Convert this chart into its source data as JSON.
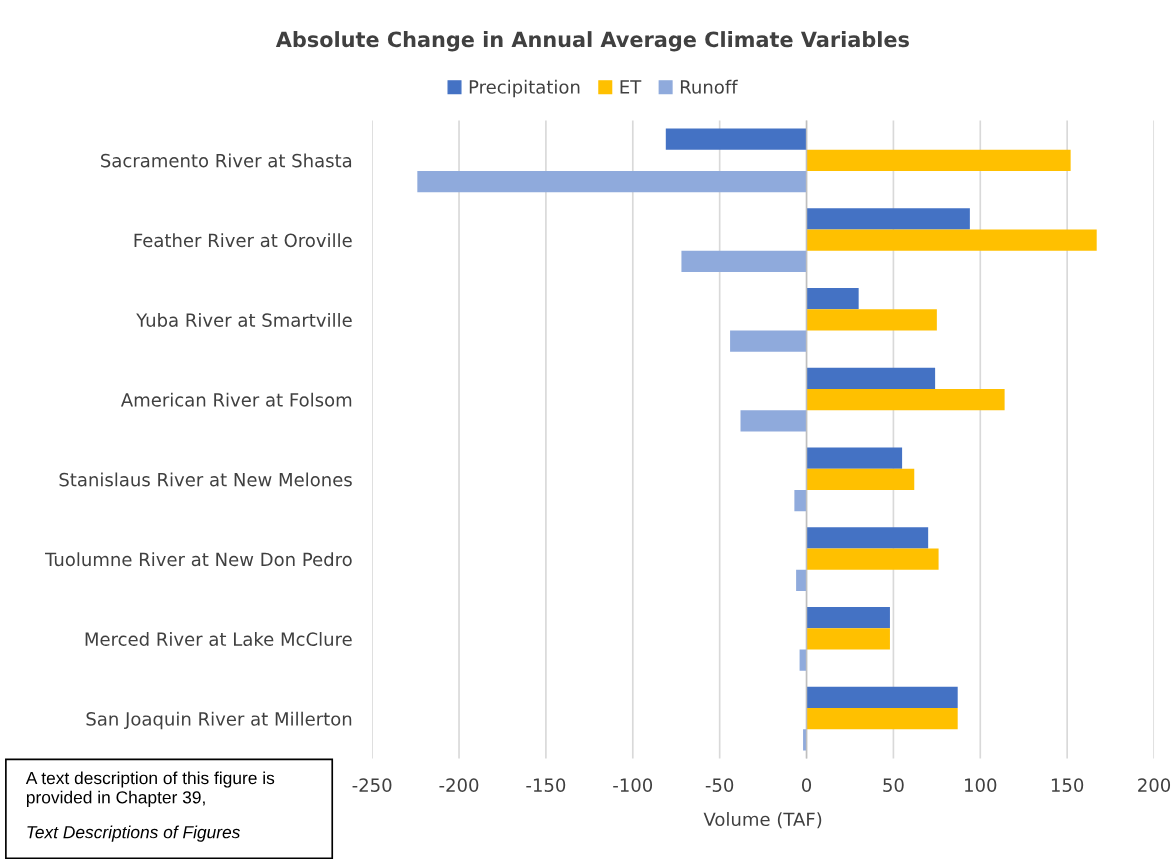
{
  "chart_data": {
    "type": "bar",
    "orientation": "horizontal",
    "title": "Absolute Change in Annual Average Climate Variables",
    "xlabel": "Volume (TAF)",
    "categories": [
      "Sacramento River at Shasta",
      "Feather River at Oroville",
      "Yuba River at Smartville",
      "American River at Folsom",
      "Stanislaus River at New Melones",
      "Tuolumne River at New Don Pedro",
      "Merced River at Lake McClure",
      "San Joaquin River at Millerton"
    ],
    "series": [
      {
        "name": "Precipitation",
        "color": "#4472c4",
        "values": [
          -81,
          94,
          30,
          74,
          55,
          70,
          48,
          87
        ]
      },
      {
        "name": "ET",
        "color": "#ffc000",
        "values": [
          152,
          167,
          75,
          114,
          62,
          76,
          48,
          87
        ]
      },
      {
        "name": "Runoff",
        "color": "#8faadc",
        "values": [
          -224,
          -72,
          -44,
          -38,
          -7,
          -6,
          -4,
          -2
        ]
      }
    ],
    "xlim": [
      -250,
      200
    ],
    "xticks": [
      -250,
      -200,
      -150,
      -100,
      -50,
      0,
      50,
      100,
      150,
      200
    ],
    "grid": "x",
    "legend": "top",
    "annotations": [
      "A text description of this figure is provided in Chapter 39,",
      "Text Descriptions of Figures"
    ]
  }
}
